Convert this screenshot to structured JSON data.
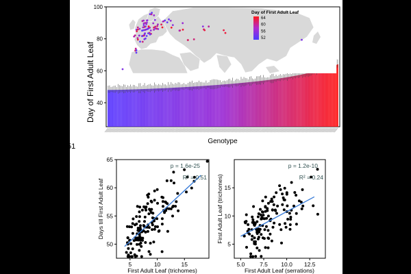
{
  "margin_note": "51",
  "chart_data": [
    {
      "type": "bar",
      "title": "",
      "xlabel": "Genotype",
      "ylabel": "Day of First Adult Leaf",
      "ylim": [
        25,
        100
      ],
      "yticks": [
        40,
        60,
        80,
        100
      ],
      "n_bars": 165,
      "value_range": [
        48,
        64
      ],
      "color_low": "#5b3cff",
      "color_mid": "#9b2bd4",
      "color_high": "#ff1a1a",
      "grid": false,
      "inset_map": {
        "title": "Day of First Adult Leaf",
        "legend_ticks": [
          64,
          60,
          56,
          52
        ],
        "legend_position": "top-right",
        "land_color": "#d9d9d9"
      }
    },
    {
      "type": "scatter",
      "xlabel": "First Adult Leaf (trichomes)",
      "ylabel": "Days till First Adult Leaf",
      "xlim": [
        2.5,
        19.5
      ],
      "ylim": [
        47.5,
        65
      ],
      "xticks": [
        5,
        10,
        15
      ],
      "yticks": [
        50,
        55,
        60,
        65
      ],
      "fit": {
        "x0": 4,
        "y0": 49.6,
        "x1": 18,
        "y1": 62.2
      },
      "annotations": {
        "p": "p = 1.6e-25",
        "r2": "R² = 0.51"
      },
      "series_color": "#000000",
      "fit_color": "#3b7dd8"
    },
    {
      "type": "scatter",
      "xlabel": "First Adult Leaf (serrations)",
      "ylabel": "First Adult Leaf (trichomes)",
      "xlim": [
        4.3,
        14.2
      ],
      "ylim": [
        2.5,
        20
      ],
      "xticks": [
        5.0,
        7.5,
        10.0,
        12.5
      ],
      "yticks": [
        5,
        10,
        15
      ],
      "fit": {
        "x0": 5,
        "y0": 6.4,
        "x1": 13,
        "y1": 13.4
      },
      "annotations": {
        "p": "p = 1.2e-10",
        "r2": "R² = 0.24"
      },
      "series_color": "#000000",
      "fit_color": "#3b7dd8"
    }
  ]
}
